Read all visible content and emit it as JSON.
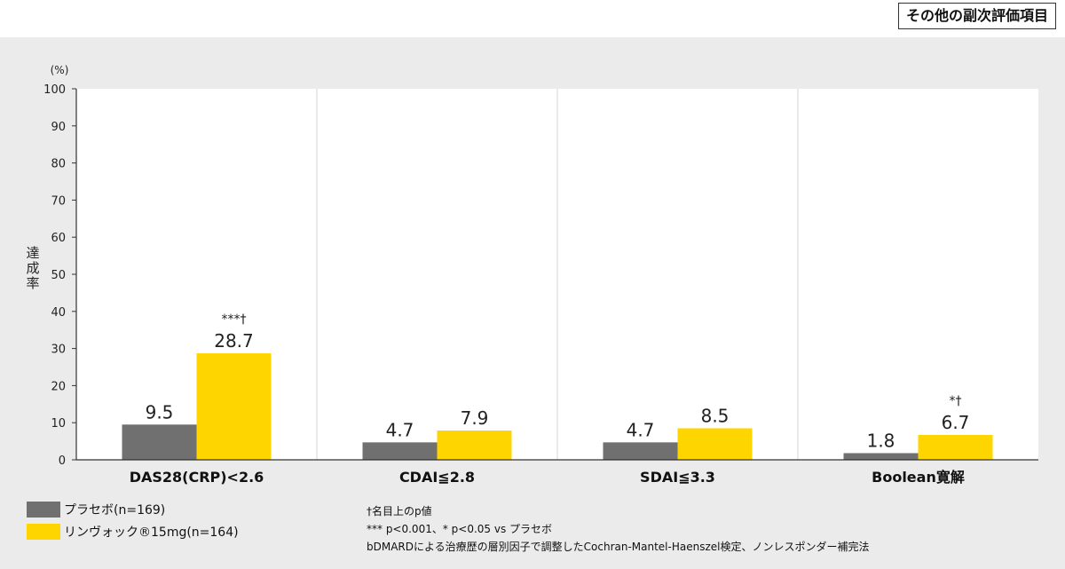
{
  "header": {
    "badge": "その他の副次評価項目"
  },
  "chart_data": {
    "type": "bar",
    "ylabel": "達成率",
    "yunit": "(%)",
    "ylim": [
      0,
      100
    ],
    "yticks": [
      0,
      10,
      20,
      30,
      40,
      50,
      60,
      70,
      80,
      90,
      100
    ],
    "categories": [
      "DAS28(CRP)<2.6",
      "CDAI≦2.8",
      "SDAI≦3.3",
      "Boolean寛解"
    ],
    "series": [
      {
        "name": "プラセボ(n=169)",
        "color": "#707070",
        "values": [
          9.5,
          4.7,
          4.7,
          1.8
        ]
      },
      {
        "name": "リンヴォック®15mg(n=164)",
        "color": "#ffd500",
        "values": [
          28.7,
          7.9,
          8.5,
          6.7
        ]
      }
    ],
    "annotations": [
      {
        "category_index": 0,
        "series_index": 1,
        "text": "***†"
      },
      {
        "category_index": 3,
        "series_index": 1,
        "text": "*†"
      }
    ],
    "grid": "vertical separators between categories"
  },
  "footnotes": {
    "line1": "†名目上のp値",
    "line2": "*** p<0.001、* p<0.05 vs プラセボ",
    "line3": "bDMARDによる治療歴の層別因子で調整したCochran-Mantel-Haenszel検定、ノンレスポンダー補完法"
  }
}
